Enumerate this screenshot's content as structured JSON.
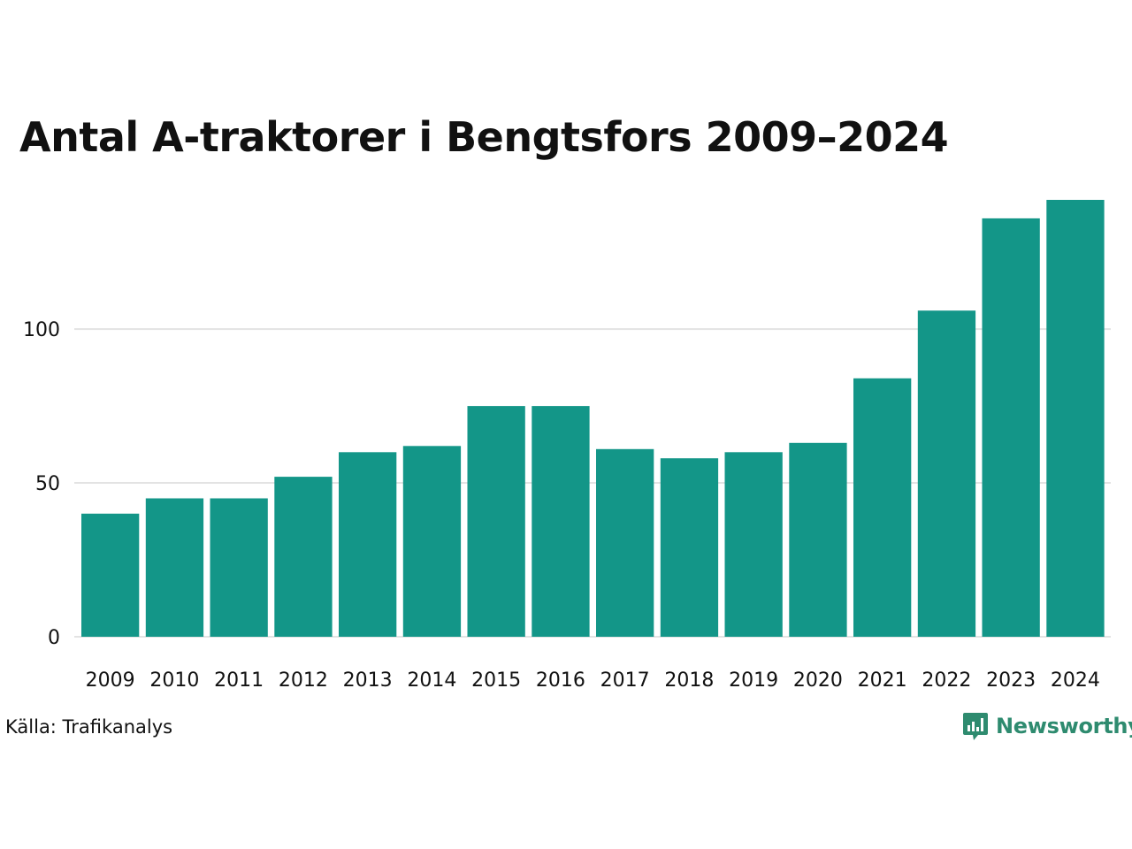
{
  "title": "Antal A-traktorer i Bengtsfors 2009–2024",
  "source": "Källa: Trafikanalys",
  "brand": {
    "name": "Newsworthy",
    "icon": "newsworthy-logo-icon",
    "color": "#2e8b6f"
  },
  "colors": {
    "bar": "#139688",
    "grid": "#e3e3e3",
    "text": "#111111"
  },
  "chart_data": {
    "type": "bar",
    "title": "Antal A-traktorer i Bengtsfors 2009–2024",
    "xlabel": "",
    "ylabel": "",
    "categories": [
      "2009",
      "2010",
      "2011",
      "2012",
      "2013",
      "2014",
      "2015",
      "2016",
      "2017",
      "2018",
      "2019",
      "2020",
      "2021",
      "2022",
      "2023",
      "2024"
    ],
    "values": [
      40,
      45,
      45,
      52,
      60,
      62,
      75,
      75,
      61,
      58,
      60,
      63,
      84,
      106,
      136,
      142
    ],
    "ylim": [
      0,
      142
    ],
    "yticks": [
      0,
      50,
      100
    ],
    "ytick_labels": [
      "0",
      "50",
      "100"
    ],
    "grid": true,
    "legend": "none"
  }
}
